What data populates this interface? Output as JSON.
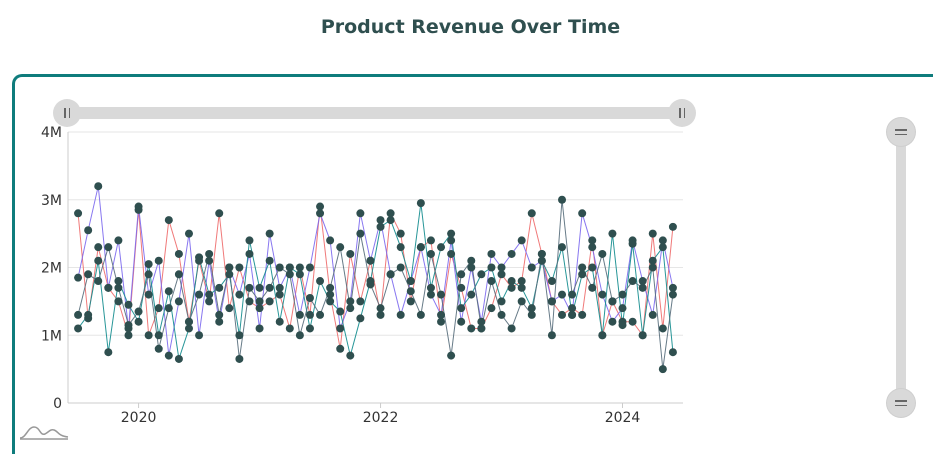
{
  "title": "Product Revenue Over Time",
  "icons": {
    "logo": "wave-logo-icon",
    "grip": "grip-handle-icon"
  },
  "colors": {
    "frame": "#0f7c7c",
    "title": "#2f4f4f",
    "marker": "#2f4f4f",
    "grid": "#e6e6e6",
    "scroll": "#d9d9d9",
    "series": [
      "#ee6a6a",
      "#7b68ee",
      "#0f8b8d",
      "#556b7a"
    ]
  },
  "chart_data": {
    "type": "line",
    "title": "Product Revenue Over Time",
    "xlabel": "",
    "ylabel": "",
    "xlim": [
      "2019-06",
      "2024-07"
    ],
    "ylim": [
      0,
      4000000
    ],
    "yticks": [
      0,
      1000000,
      2000000,
      3000000,
      4000000
    ],
    "ytick_labels": [
      "0",
      "1M",
      "2M",
      "3M",
      "4M"
    ],
    "xticks": [
      "2020-01",
      "2022-01",
      "2024-01"
    ],
    "xtick_labels": [
      "2020",
      "2022",
      "2024"
    ],
    "grid": true,
    "legend": "none",
    "x": [
      "2019-07",
      "2019-08",
      "2019-09",
      "2019-10",
      "2019-11",
      "2019-12",
      "2020-01",
      "2020-02",
      "2020-03",
      "2020-04",
      "2020-05",
      "2020-06",
      "2020-07",
      "2020-08",
      "2020-09",
      "2020-10",
      "2020-11",
      "2020-12",
      "2021-01",
      "2021-02",
      "2021-03",
      "2021-04",
      "2021-05",
      "2021-06",
      "2021-07",
      "2021-08",
      "2021-09",
      "2021-10",
      "2021-11",
      "2021-12",
      "2022-01",
      "2022-02",
      "2022-03",
      "2022-04",
      "2022-05",
      "2022-06",
      "2022-07",
      "2022-08",
      "2022-09",
      "2022-10",
      "2022-11",
      "2022-12",
      "2023-01",
      "2023-02",
      "2023-03",
      "2023-04",
      "2023-05",
      "2023-06",
      "2023-07",
      "2023-08",
      "2023-09",
      "2023-10",
      "2023-11",
      "2023-12",
      "2024-01",
      "2024-02",
      "2024-03",
      "2024-04",
      "2024-05",
      "2024-06"
    ],
    "series": [
      {
        "values": [
          2800000,
          1250000,
          2300000,
          1700000,
          1500000,
          1000000,
          2850000,
          1000000,
          1400000,
          2700000,
          2200000,
          1200000,
          2100000,
          1500000,
          2800000,
          1400000,
          2000000,
          1500000,
          1400000,
          1500000,
          1600000,
          1100000,
          2000000,
          1300000,
          2900000,
          1600000,
          800000,
          2200000,
          1500000,
          2100000,
          1300000,
          2800000,
          2500000,
          1500000,
          2300000,
          2400000,
          1200000,
          2200000,
          1700000,
          1100000,
          1100000,
          1400000,
          1900000,
          1700000,
          1800000,
          2800000,
          2200000,
          1500000,
          1300000,
          1400000,
          1300000,
          2400000,
          1000000,
          1500000,
          1200000,
          1200000,
          1000000,
          2500000,
          1100000,
          2600000
        ]
      },
      {
        "values": [
          1850000,
          2550000,
          3200000,
          1700000,
          2400000,
          1100000,
          2900000,
          1600000,
          2100000,
          700000,
          1500000,
          2500000,
          1000000,
          2100000,
          1200000,
          2000000,
          1600000,
          2200000,
          1100000,
          2500000,
          1700000,
          2000000,
          1300000,
          2000000,
          2800000,
          2400000,
          1100000,
          1500000,
          2800000,
          2100000,
          2700000,
          1900000,
          1300000,
          1800000,
          2300000,
          1600000,
          1300000,
          2400000,
          1200000,
          2000000,
          1200000,
          2200000,
          2000000,
          2200000,
          2400000,
          2000000,
          2100000,
          1500000,
          1600000,
          1300000,
          2800000,
          2300000,
          1600000,
          1200000,
          1400000,
          2400000,
          1800000,
          1300000,
          2400000,
          1700000
        ]
      },
      {
        "values": [
          1100000,
          1300000,
          2100000,
          750000,
          1800000,
          1450000,
          1200000,
          2050000,
          1000000,
          1650000,
          650000,
          1100000,
          2150000,
          1600000,
          1700000,
          1900000,
          1000000,
          2400000,
          1700000,
          2100000,
          1200000,
          2000000,
          1900000,
          1100000,
          1800000,
          1500000,
          1350000,
          700000,
          1250000,
          1800000,
          2600000,
          2700000,
          2300000,
          1800000,
          2950000,
          1700000,
          2300000,
          2500000,
          1400000,
          1600000,
          1900000,
          2000000,
          1500000,
          1800000,
          1700000,
          1400000,
          2100000,
          1800000,
          2300000,
          1300000,
          1900000,
          2000000,
          1000000,
          2500000,
          1150000,
          2350000,
          1000000,
          2100000,
          2300000,
          750000
        ]
      },
      {
        "values": [
          1300000,
          1900000,
          1800000,
          2300000,
          1700000,
          1150000,
          1350000,
          1900000,
          800000,
          1400000,
          1900000,
          1200000,
          1600000,
          2200000,
          1300000,
          2000000,
          650000,
          1700000,
          1500000,
          1700000,
          2000000,
          1900000,
          1000000,
          1550000,
          1300000,
          1700000,
          2300000,
          1400000,
          2500000,
          1750000,
          1400000,
          1900000,
          2000000,
          1650000,
          1300000,
          2200000,
          1600000,
          700000,
          1900000,
          2100000,
          1100000,
          1800000,
          1300000,
          1100000,
          1500000,
          1300000,
          2200000,
          1000000,
          3000000,
          1600000,
          2000000,
          1700000,
          2200000,
          1500000,
          1600000,
          1800000,
          1700000,
          2000000,
          500000,
          1600000
        ]
      }
    ]
  }
}
